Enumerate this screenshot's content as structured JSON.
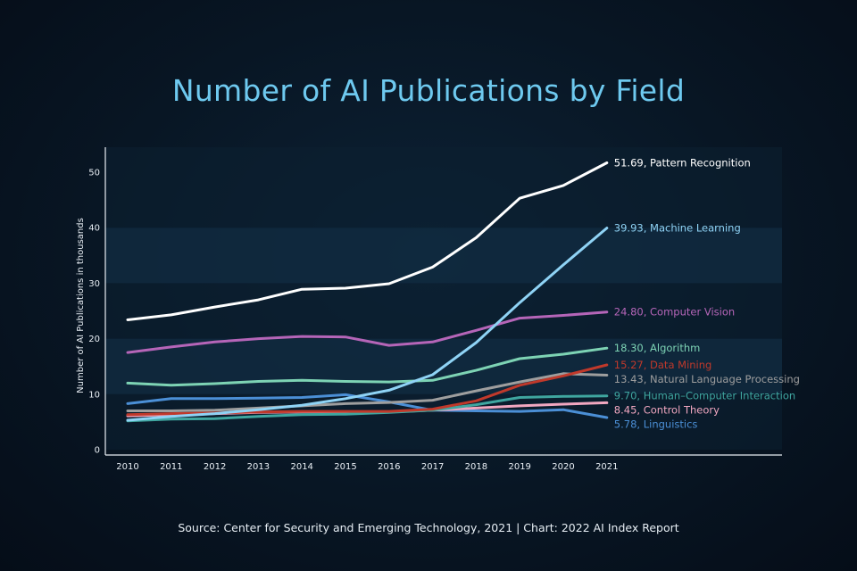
{
  "title": "Number of AI Publications by Field",
  "source": "Source: Center for Security and Emerging Technology, 2021 | Chart: 2022 AI Index Report",
  "chart_data": {
    "type": "line",
    "title": "Number of AI Publications by Field",
    "xlabel": "",
    "ylabel": "Number of AI Publications in thousands",
    "x": [
      "2010",
      "2011",
      "2012",
      "2013",
      "2014",
      "2015",
      "2016",
      "2017",
      "2018",
      "2019",
      "2020",
      "2021"
    ],
    "ylim": [
      0,
      55
    ],
    "yticks": [
      0,
      10,
      20,
      30,
      40,
      50
    ],
    "grid": true,
    "series": [
      {
        "name": "Pattern Recognition",
        "label": "51.69, Pattern Recognition",
        "color": "#ffffff",
        "values": [
          23.4,
          24.3,
          25.7,
          27.0,
          28.9,
          29.1,
          29.9,
          32.9,
          38.2,
          45.3,
          47.6,
          51.69
        ]
      },
      {
        "name": "Machine Learning",
        "label": "39.93, Machine Learning",
        "color": "#8fd3f5",
        "values": [
          5.3,
          6.0,
          6.5,
          7.2,
          8.0,
          9.2,
          10.7,
          13.5,
          19.3,
          26.5,
          33.3,
          39.93
        ]
      },
      {
        "name": "Computer Vision",
        "label": "24.80, Computer Vision",
        "color": "#b565b8",
        "values": [
          17.5,
          18.5,
          19.4,
          20.0,
          20.4,
          20.3,
          18.8,
          19.4,
          21.5,
          23.7,
          24.2,
          24.8
        ]
      },
      {
        "name": "Algorithm",
        "label": "18.30, Algorithm",
        "color": "#7dd3b4",
        "values": [
          12.0,
          11.6,
          11.9,
          12.3,
          12.5,
          12.3,
          12.2,
          12.5,
          14.3,
          16.4,
          17.2,
          18.3
        ]
      },
      {
        "name": "Data Mining",
        "label": "15.27, Data Mining",
        "color": "#c0392b",
        "values": [
          6.3,
          6.5,
          6.6,
          6.8,
          6.9,
          6.9,
          6.9,
          7.3,
          8.8,
          11.6,
          13.3,
          15.27
        ]
      },
      {
        "name": "Natural Language Processing",
        "label": "13.43, Natural Language Processing",
        "color": "#9e9e9e",
        "values": [
          7.0,
          7.0,
          7.1,
          7.5,
          7.9,
          8.3,
          8.5,
          8.9,
          10.6,
          12.2,
          13.7,
          13.43
        ]
      },
      {
        "name": "Human-Computer Interaction",
        "label": "9.70, Human–Computer Interaction",
        "color": "#3fa6a0",
        "values": [
          5.2,
          5.5,
          5.6,
          6.0,
          6.3,
          6.4,
          6.7,
          7.1,
          8.1,
          9.4,
          9.6,
          9.7
        ]
      },
      {
        "name": "Control Theory",
        "label": "8.45, Control Theory",
        "color": "#f1a7c0",
        "values": [
          6.1,
          6.3,
          6.5,
          6.7,
          6.8,
          6.8,
          6.8,
          7.1,
          7.5,
          7.9,
          8.2,
          8.45
        ]
      },
      {
        "name": "Linguistics",
        "label": "5.78, Linguistics",
        "color": "#4b8fd6",
        "values": [
          8.3,
          9.2,
          9.2,
          9.3,
          9.4,
          9.9,
          8.6,
          7.1,
          7.0,
          6.9,
          7.2,
          5.78
        ]
      }
    ]
  }
}
